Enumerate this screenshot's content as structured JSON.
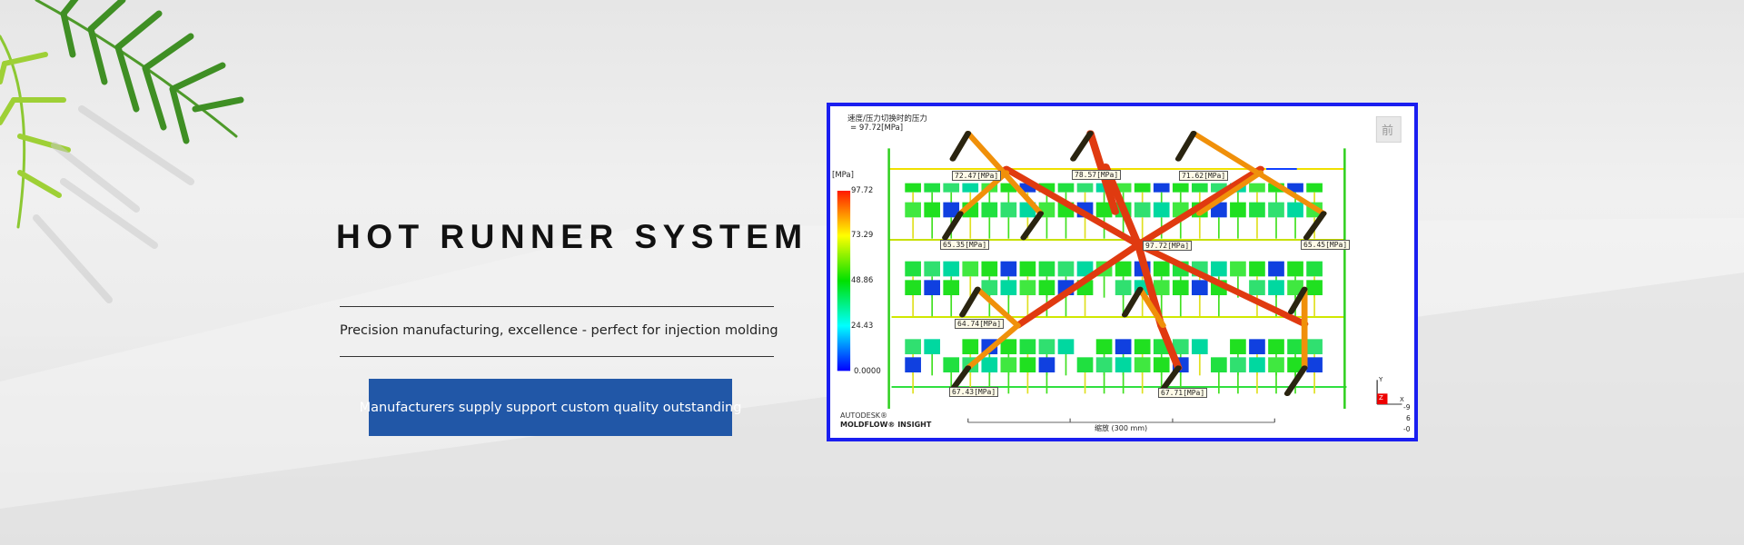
{
  "banner": {
    "title": "HOT RUNNER SYSTEM",
    "subtitle": "Precision manufacturing, excellence - perfect for injection molding",
    "cta_label": "Manufacturers supply support custom quality outstanding",
    "accent_color": "#2157a7"
  },
  "simulation": {
    "result_title": "速度/压力切换时的压力",
    "result_value": "= 97.72[MPa]",
    "legend_unit": "[MPa]",
    "legend_ticks": [
      "97.72",
      "73.29",
      "48.86",
      "24.43",
      "0.0000"
    ],
    "labels": [
      "72.47[MPa]",
      "78.57[MPa]",
      "71.62[MPa]",
      "65.35[MPa]",
      "97.72[MPa]",
      "65.45[MPa]",
      "64.74[MPa]",
      "67.43[MPa]",
      "67.71[MPa]"
    ],
    "view_button": "前",
    "brand_top": "AUTODESK®",
    "brand_bottom": "MOLDFLOW® INSIGHT",
    "scale_text": "缩放 (300 mm)",
    "axis": {
      "y": "Y",
      "z": "Z",
      "x": "X"
    },
    "coords": [
      "-9",
      "6",
      "-0"
    ],
    "frame_color": "#1a1ef0"
  }
}
